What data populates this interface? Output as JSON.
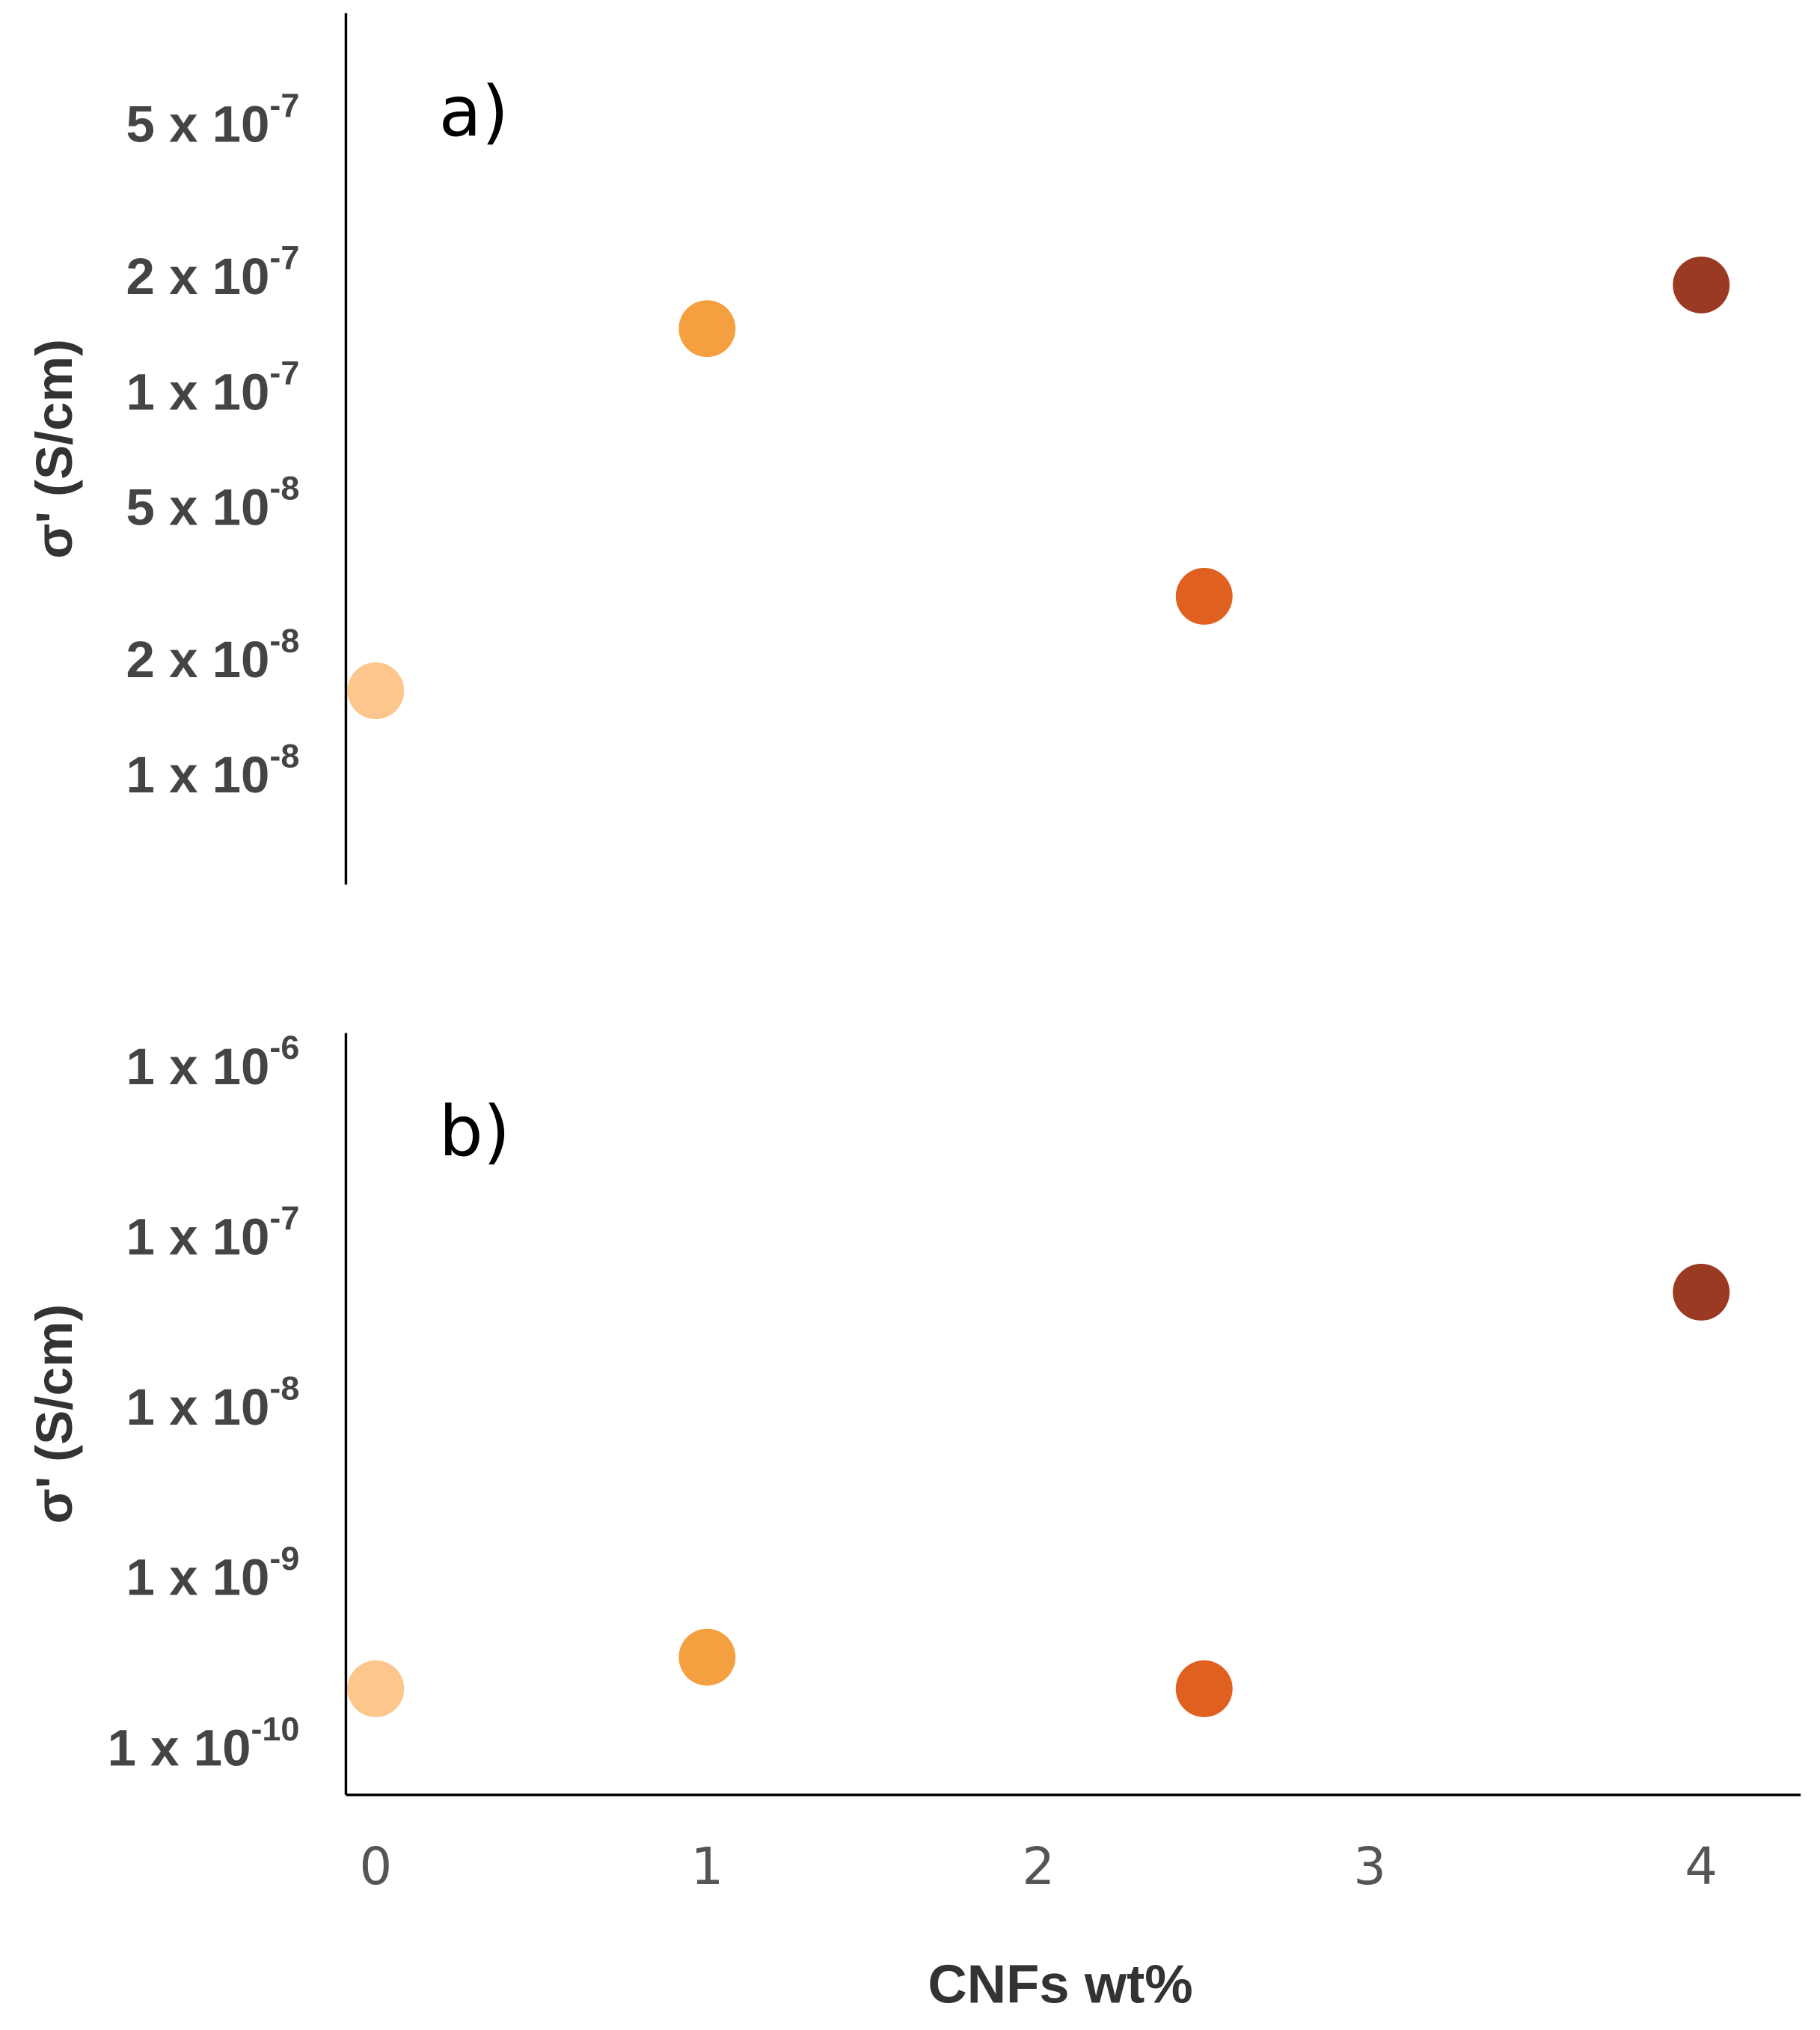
{
  "chart_data": [
    {
      "type": "scatter",
      "annotation": "a)",
      "y_label": "σ' (S/cm)",
      "log_y": true,
      "x": [
        0,
        1,
        2.5,
        4
      ],
      "values": [
        1.7e-08,
        1.5e-07,
        3e-08,
        1.95e-07
      ],
      "colors": [
        "#fdc68c",
        "#f4a040",
        "#e06020",
        "#9b3a22"
      ],
      "xlim": [
        -0.09,
        4.3
      ],
      "ylim": [
        5.3e-09,
        1e-06
      ],
      "yticks": [
        {
          "value": 1e-08,
          "label": "1 x 10",
          "exponent": "-8"
        },
        {
          "value": 2e-08,
          "label": "2 x 10",
          "exponent": "-8"
        },
        {
          "value": 5e-08,
          "label": "5 x 10",
          "exponent": "-8"
        },
        {
          "value": 1e-07,
          "label": "1 x 10",
          "exponent": "-7"
        },
        {
          "value": 2e-07,
          "label": "2 x 10",
          "exponent": "-7"
        },
        {
          "value": 5e-07,
          "label": "5 x 10",
          "exponent": "-7"
        }
      ]
    },
    {
      "type": "scatter",
      "annotation": "b)",
      "y_label": "σ' (S/cm)",
      "x_label": "CNFs wt%",
      "log_y": true,
      "x": [
        0,
        1,
        2.5,
        4
      ],
      "values": [
        2.35e-10,
        3.6e-10,
        2.35e-10,
        5e-08
      ],
      "colors": [
        "#fdc68c",
        "#f4a040",
        "#e06020",
        "#9b3a22"
      ],
      "xlim": [
        -0.09,
        4.3
      ],
      "ylim": [
        5.6e-11,
        1.66e-06
      ],
      "xticks": [
        0,
        1,
        2,
        3,
        4
      ],
      "yticks": [
        {
          "value": 1e-10,
          "label": "1 x 10",
          "exponent": "-10"
        },
        {
          "value": 1e-09,
          "label": "1 x 10",
          "exponent": "-9"
        },
        {
          "value": 1e-08,
          "label": "1 x 10",
          "exponent": "-8"
        },
        {
          "value": 1e-07,
          "label": "1 x 10",
          "exponent": "-7"
        },
        {
          "value": 1e-06,
          "label": "1 x 10",
          "exponent": "-6"
        }
      ]
    }
  ]
}
